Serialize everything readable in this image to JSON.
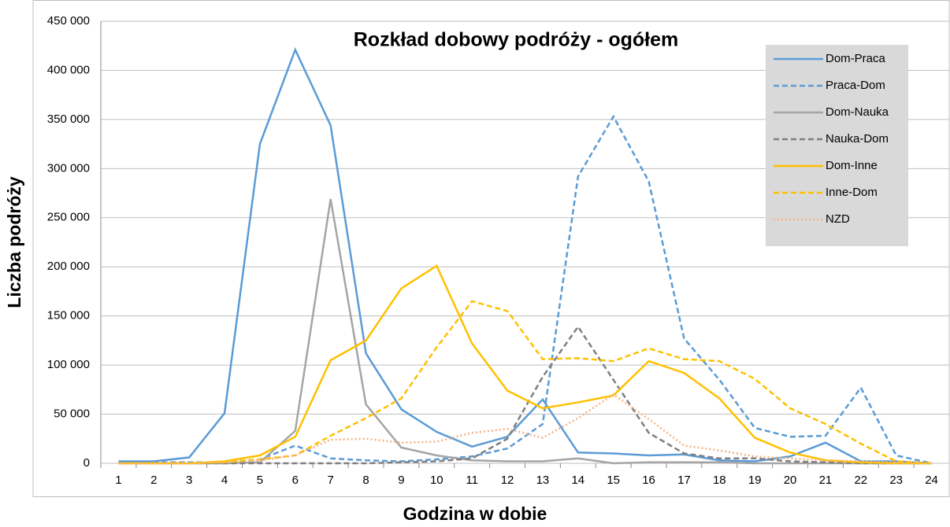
{
  "chart_data": {
    "type": "line",
    "title": "Rozkład dobowy podróży - ogółem",
    "x_label": "Godzina w dobie",
    "y_label": "Liczba podróży",
    "categories": [
      "1",
      "2",
      "3",
      "4",
      "5",
      "6",
      "7",
      "8",
      "9",
      "10",
      "11",
      "12",
      "13",
      "14",
      "15",
      "16",
      "17",
      "18",
      "19",
      "20",
      "21",
      "22",
      "23",
      "24"
    ],
    "ylim": [
      0,
      450000
    ],
    "yticks": [
      {
        "value": 0,
        "label": "0"
      },
      {
        "value": 50000,
        "label": "50 000"
      },
      {
        "value": 100000,
        "label": "100 000"
      },
      {
        "value": 150000,
        "label": "150 000"
      },
      {
        "value": 200000,
        "label": "200 000"
      },
      {
        "value": 250000,
        "label": "250 000"
      },
      {
        "value": 300000,
        "label": "300 000"
      },
      {
        "value": 350000,
        "label": "350 000"
      },
      {
        "value": 400000,
        "label": "400 000"
      },
      {
        "value": 450000,
        "label": "450 000"
      }
    ],
    "grid": true,
    "legend": "upper right",
    "series": [
      {
        "name": "Dom-Praca",
        "color": "#5b9bd5",
        "style": "solid",
        "values": [
          2000,
          2000,
          6000,
          51000,
          325000,
          421000,
          344000,
          112000,
          55000,
          32000,
          17000,
          27000,
          65000,
          11000,
          10000,
          8000,
          9000,
          3000,
          2000,
          7000,
          21000,
          2000,
          2000,
          0
        ]
      },
      {
        "name": "Praca-Dom",
        "color": "#5b9bd5",
        "style": "dashed",
        "values": [
          1000,
          1000,
          1000,
          1000,
          4000,
          18000,
          5000,
          3000,
          2000,
          4000,
          7000,
          15000,
          40000,
          292000,
          353000,
          287000,
          127000,
          85000,
          36000,
          27000,
          28000,
          77000,
          8000,
          0
        ]
      },
      {
        "name": "Dom-Nauka",
        "color": "#a5a5a5",
        "style": "solid",
        "values": [
          0,
          0,
          0,
          0,
          1000,
          33000,
          269000,
          60000,
          16000,
          8000,
          3000,
          2000,
          2000,
          5000,
          0,
          1000,
          1000,
          1000,
          0,
          0,
          0,
          0,
          0,
          0
        ]
      },
      {
        "name": "Nauka-Dom",
        "color": "#7f7f7f",
        "style": "dashed",
        "values": [
          0,
          0,
          0,
          0,
          0,
          0,
          0,
          0,
          1000,
          2000,
          5000,
          25000,
          88000,
          139000,
          85000,
          31000,
          10000,
          5000,
          5000,
          2000,
          1000,
          0,
          0,
          0
        ]
      },
      {
        "name": "Dom-Inne",
        "color": "#ffc000",
        "style": "solid",
        "values": [
          0,
          0,
          0,
          2000,
          8000,
          27000,
          105000,
          125000,
          178000,
          201000,
          122000,
          74000,
          56000,
          62000,
          69000,
          104000,
          92000,
          66000,
          26000,
          11000,
          3000,
          1000,
          0,
          0
        ]
      },
      {
        "name": "Inne-Dom",
        "color": "#ffc000",
        "style": "dashed",
        "values": [
          0,
          0,
          0,
          1000,
          4000,
          8000,
          28000,
          46000,
          66000,
          118000,
          165000,
          155000,
          106000,
          107000,
          104000,
          117000,
          106000,
          104000,
          86000,
          56000,
          40000,
          20000,
          2000,
          0
        ]
      },
      {
        "name": "NZD",
        "color": "#f4b183",
        "style": "dotted",
        "values": [
          0,
          0,
          0,
          1000,
          3000,
          8000,
          24000,
          25000,
          21000,
          22000,
          31000,
          35000,
          26000,
          46000,
          70000,
          45000,
          18000,
          13000,
          7000,
          5000,
          3000,
          2000,
          1000,
          0
        ]
      }
    ]
  }
}
